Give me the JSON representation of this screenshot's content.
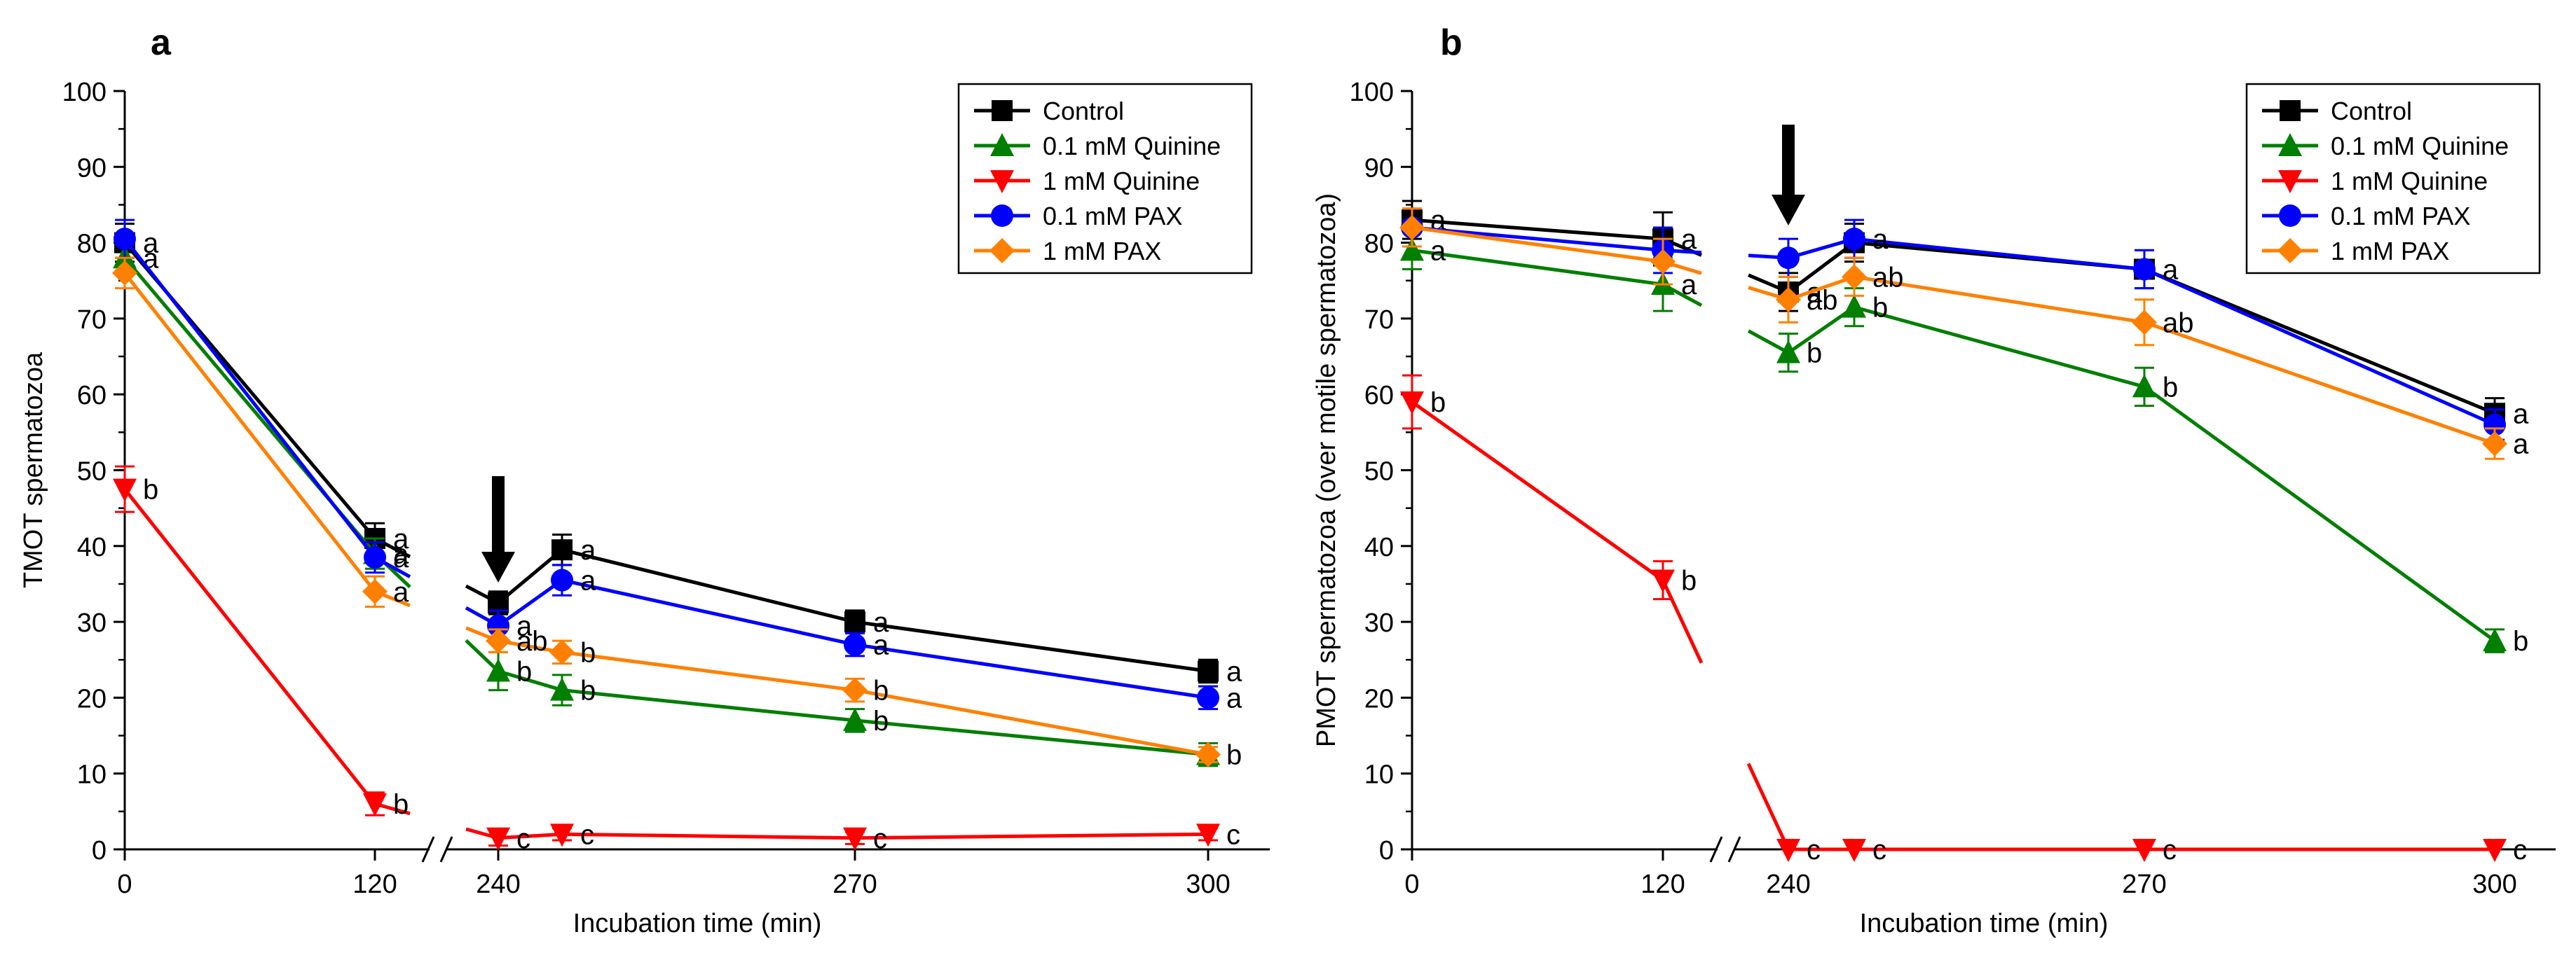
{
  "chart_data": [
    {
      "panel": "a",
      "type": "line",
      "panel_label": "a",
      "xlabel": "Incubation time (min)",
      "ylabel": "TMOT spermatozoa",
      "ylim": [
        0,
        100
      ],
      "yticks": [
        0,
        10,
        20,
        30,
        40,
        50,
        60,
        70,
        80,
        90,
        100
      ],
      "xticks": [
        "0",
        "120",
        "240",
        "270",
        "300"
      ],
      "x_break": "between 120 and 240",
      "legend_position": "top-right",
      "arrow_at_x": "240",
      "x": [
        "0",
        "120",
        "240",
        "250",
        "270",
        "300"
      ],
      "series": [
        {
          "name": "Control",
          "color": "#000000",
          "marker": "square",
          "values": [
            80,
            41,
            32.5,
            39.5,
            30,
            23.5
          ],
          "errors": [
            2.5,
            2,
            1.5,
            2,
            1.5,
            1.5
          ],
          "labels": [
            "a",
            "a",
            "",
            "a",
            "a",
            "a"
          ]
        },
        {
          "name": "0.1 mM Quinine",
          "color": "#007f00",
          "marker": "triangle-up",
          "values": [
            78,
            39,
            23.5,
            21,
            17,
            12.5
          ],
          "errors": [
            2,
            2,
            2.5,
            2,
            1.5,
            1.5
          ],
          "labels": [
            "a",
            "a",
            "b",
            "b",
            "b",
            ""
          ]
        },
        {
          "name": "1 mM Quinine",
          "color": "#ff0000",
          "marker": "triangle-down",
          "values": [
            47.5,
            6,
            1.5,
            2,
            1.5,
            2
          ],
          "errors": [
            3,
            1.5,
            1,
            0.8,
            0.8,
            0.8
          ],
          "labels": [
            "b",
            "b",
            "c",
            "c",
            "c",
            "c"
          ]
        },
        {
          "name": "0.1 mM PAX",
          "color": "#0000ff",
          "marker": "circle",
          "values": [
            80.5,
            38.5,
            29.5,
            35.5,
            27,
            20
          ],
          "errors": [
            2.5,
            2,
            2,
            2,
            1.5,
            1.5
          ],
          "labels": [
            "",
            "a",
            "a",
            "a",
            "a",
            "a"
          ]
        },
        {
          "name": "1 mM PAX",
          "color": "#ff8000",
          "marker": "diamond",
          "values": [
            76,
            34,
            27.5,
            26,
            21,
            12.5
          ],
          "errors": [
            2,
            2,
            1.5,
            1.5,
            1.5,
            1
          ],
          "labels": [
            "",
            "a",
            "ab",
            "b",
            "b",
            "b"
          ]
        }
      ]
    },
    {
      "panel": "b",
      "type": "line",
      "panel_label": "b",
      "xlabel": "Incubation time (min)",
      "ylabel": "PMOT spermatozoa (over motile spermatozoa)",
      "ylim": [
        0,
        100
      ],
      "yticks": [
        0,
        10,
        20,
        30,
        40,
        50,
        60,
        70,
        80,
        90,
        100
      ],
      "xticks": [
        "0",
        "120",
        "240",
        "270",
        "300"
      ],
      "x_break": "between 120 and 240",
      "legend_position": "top-right",
      "arrow_at_x": "240",
      "x": [
        "0",
        "120",
        "240",
        "250",
        "270",
        "300"
      ],
      "series": [
        {
          "name": "Control",
          "color": "#000000",
          "marker": "square",
          "values": [
            83,
            80.5,
            73.5,
            80,
            76.5,
            57.5
          ],
          "errors": [
            2.5,
            3.5,
            2.5,
            2.5,
            2.5,
            2
          ],
          "labels": [
            "a",
            "a",
            "a",
            "",
            "",
            "a"
          ]
        },
        {
          "name": "0.1 mM Quinine",
          "color": "#007f00",
          "marker": "triangle-up",
          "values": [
            79,
            74.5,
            65.5,
            71.5,
            61,
            27.5
          ],
          "errors": [
            2.5,
            3.5,
            2.5,
            2.5,
            2.5,
            1.5
          ],
          "labels": [
            "a",
            "a",
            "b",
            "b",
            "b",
            "b"
          ]
        },
        {
          "name": "1 mM Quinine",
          "color": "#ff0000",
          "marker": "triangle-down",
          "values": [
            59,
            35.5,
            0,
            0,
            0,
            0
          ],
          "errors": [
            3.5,
            2.5,
            0,
            0,
            0,
            0
          ],
          "labels": [
            "b",
            "b",
            "c",
            "c",
            "c",
            "c"
          ]
        },
        {
          "name": "0.1 mM PAX",
          "color": "#0000ff",
          "marker": "circle",
          "values": [
            82,
            79,
            78,
            80.5,
            76.5,
            56
          ],
          "errors": [
            2.5,
            3,
            2.5,
            2.5,
            2.5,
            2
          ],
          "labels": [
            "",
            "",
            "",
            "a",
            "a",
            ""
          ]
        },
        {
          "name": "1 mM PAX",
          "color": "#ff8000",
          "marker": "diamond",
          "values": [
            82,
            77.5,
            72.5,
            75.5,
            69.5,
            53.5
          ],
          "errors": [
            2.5,
            3,
            3,
            2.5,
            3,
            2
          ],
          "labels": [
            "",
            "",
            "ab",
            "ab",
            "ab",
            "a"
          ]
        }
      ]
    }
  ]
}
